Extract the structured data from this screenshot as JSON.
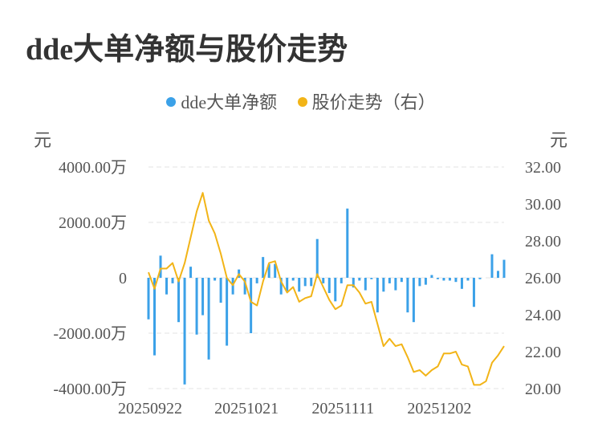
{
  "title": "dde大单净额与股价走势",
  "legend": {
    "bar_label": "dde大单净额",
    "line_label": "股价走势（右）",
    "bar_color": "#3ba1e8",
    "line_color": "#f2b417"
  },
  "units": {
    "left": "元",
    "right": "元"
  },
  "chart_data": {
    "type": "bar+line",
    "title": "dde大单净额与股价走势",
    "x_tick_labels": [
      "20250922",
      "20251021",
      "20251111",
      "20251202"
    ],
    "x_tick_indices": [
      0,
      16,
      32,
      48
    ],
    "left_axis": {
      "unit": "元",
      "range": [
        -4000,
        4000
      ],
      "ticks": [
        4000,
        2000,
        0,
        -2000,
        -4000
      ],
      "tick_labels": [
        "4000.00万",
        "2000.00万",
        "0",
        "-2000.00万",
        "-4000.00万"
      ]
    },
    "right_axis": {
      "unit": "元",
      "range": [
        20,
        32
      ],
      "ticks": [
        32,
        30,
        28,
        26,
        24,
        22,
        20
      ],
      "tick_labels": [
        "32.00",
        "30.00",
        "28.00",
        "26.00",
        "24.00",
        "22.00",
        "20.00"
      ]
    },
    "series": [
      {
        "name": "dde大单净额",
        "type": "bar",
        "unit": "万元",
        "values": [
          -1500,
          -2800,
          800,
          -600,
          -200,
          -1600,
          -3850,
          400,
          -2050,
          -1350,
          -2950,
          -100,
          -900,
          -2450,
          -600,
          300,
          -600,
          -2000,
          -200,
          750,
          500,
          500,
          -600,
          -500,
          -100,
          -500,
          -300,
          -300,
          1400,
          -200,
          -550,
          -850,
          -200,
          2500,
          -350,
          -100,
          -450,
          -50,
          -1250,
          -500,
          -200,
          -450,
          -150,
          -1250,
          -1600,
          -300,
          -250,
          100,
          -50,
          -100,
          -100,
          -150,
          -400,
          -100,
          -1050,
          -50,
          0,
          850,
          250,
          650
        ]
      },
      {
        "name": "股价走势（右）",
        "type": "line",
        "values": [
          26.3,
          25.4,
          26.5,
          26.5,
          26.8,
          25.8,
          26.8,
          28.2,
          29.6,
          30.6,
          29.1,
          28.4,
          27.3,
          26.0,
          25.6,
          26.2,
          25.8,
          24.7,
          24.5,
          25.8,
          26.8,
          26.9,
          25.8,
          25.2,
          25.5,
          24.7,
          24.9,
          25.0,
          26.2,
          25.5,
          24.8,
          24.3,
          24.5,
          25.6,
          25.6,
          25.2,
          24.6,
          24.7,
          23.5,
          22.3,
          22.7,
          22.3,
          22.4,
          21.7,
          20.9,
          21.0,
          20.7,
          21.0,
          21.2,
          21.9,
          21.9,
          22.0,
          21.3,
          21.2,
          20.2,
          20.2,
          20.4,
          21.4,
          21.8,
          22.3
        ]
      }
    ],
    "grid": true,
    "legend_position": "top-center"
  }
}
